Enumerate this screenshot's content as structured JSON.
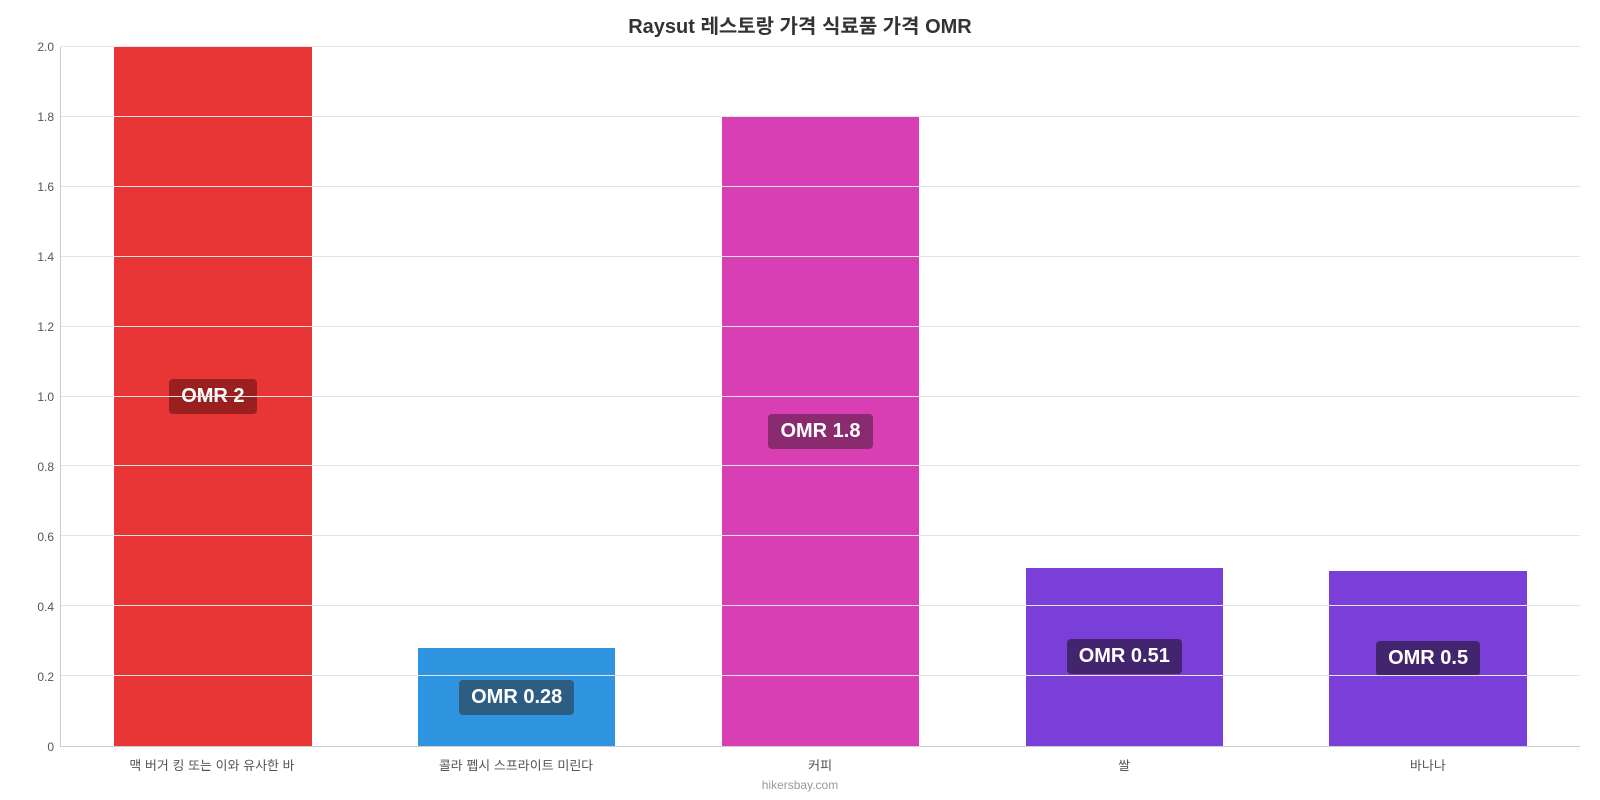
{
  "chart": {
    "type": "bar",
    "title": "Raysut 레스토랑 가격 식료품 가격 OMR",
    "title_fontsize": 20,
    "title_color": "#333333",
    "attribution": "hikersbay.com",
    "attribution_fontsize": 12,
    "attribution_color": "#999999",
    "background_color": "#ffffff",
    "grid_color": "#e5e5e5",
    "axis_color": "#cccccc",
    "label_fontsize": 13,
    "tick_fontsize": 12,
    "tick_color": "#555555",
    "ylim_min": 0,
    "ylim_max": 2.0,
    "ytick_step": 0.2,
    "yticks": [
      "0",
      "0.2",
      "0.4",
      "0.6",
      "0.8",
      "1.0",
      "1.2",
      "1.4",
      "1.6",
      "1.8",
      "2.0"
    ],
    "bar_width_pct": 65,
    "badge_fontsize": 20,
    "badge_radius": 4,
    "bars": [
      {
        "category": "맥 버거 킹 또는 이와 유사한 바",
        "value": 2.0,
        "value_label": "OMR 2",
        "bar_color": "#e83535",
        "badge_bg": "#9a1f1f",
        "badge_text_color": "#ffffff"
      },
      {
        "category": "콜라 펩시 스프라이트 미린다",
        "value": 0.28,
        "value_label": "OMR 0.28",
        "bar_color": "#2f95e0",
        "badge_bg": "#2d5d82",
        "badge_text_color": "#ffffff"
      },
      {
        "category": "커피",
        "value": 1.8,
        "value_label": "OMR 1.8",
        "bar_color": "#d93fb4",
        "badge_bg": "#8a2a6f",
        "badge_text_color": "#ffffff"
      },
      {
        "category": "쌀",
        "value": 0.51,
        "value_label": "OMR 0.51",
        "bar_color": "#7b3fd9",
        "badge_bg": "#42256e",
        "badge_text_color": "#ffffff"
      },
      {
        "category": "바나나",
        "value": 0.5,
        "value_label": "OMR 0.5",
        "bar_color": "#7b3fd9",
        "badge_bg": "#42256e",
        "badge_text_color": "#ffffff"
      }
    ]
  }
}
